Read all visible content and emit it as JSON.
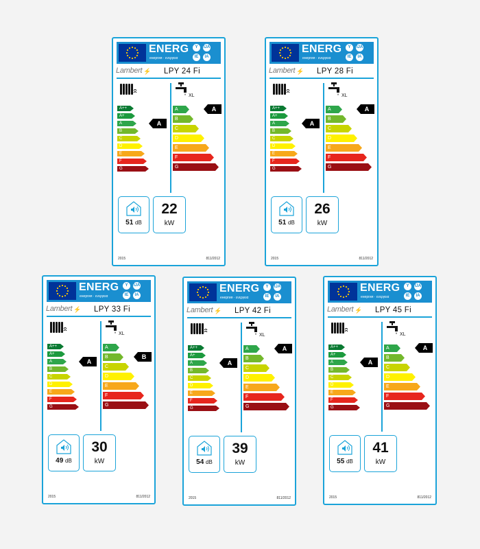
{
  "header": {
    "energ": "ENERG",
    "subtitle": "енергия · ενεργεια",
    "lang_codes": [
      "Y",
      "IJA",
      "IE",
      "IA"
    ],
    "flag_color": "#003399",
    "header_color": "#1a8fd0"
  },
  "scale_left": [
    "A++",
    "A+",
    "A",
    "B",
    "C",
    "D",
    "E",
    "F",
    "G"
  ],
  "scale_right": [
    "A",
    "B",
    "C",
    "D",
    "E",
    "F",
    "G"
  ],
  "scale_colors": {
    "A++": "#0a7a32",
    "A+": "#1c9a3e",
    "A": "#2ea64a",
    "B": "#73b82c",
    "C": "#c8d400",
    "D": "#fff100",
    "E": "#f7a81b",
    "F": "#e7261d",
    "G": "#9a0f14"
  },
  "tap_size": "XL",
  "labels": [
    {
      "brand": "Lambert",
      "model": "LPY 24 Fi",
      "heating_class": "A",
      "water_class": "A",
      "noise": "51",
      "noise_unit": "dB",
      "power": "22",
      "power_unit": "kW",
      "year": "2015",
      "regulation": "811/2012"
    },
    {
      "brand": "Lambert",
      "model": "LPY 28 Fi",
      "heating_class": "A",
      "water_class": "A",
      "noise": "51",
      "noise_unit": "dB",
      "power": "26",
      "power_unit": "kW",
      "year": "2015",
      "regulation": "811/2012"
    },
    {
      "brand": "Lambert",
      "model": "LPY 33 Fi",
      "heating_class": "A",
      "water_class": "B",
      "noise": "49",
      "noise_unit": "dB",
      "power": "30",
      "power_unit": "kW",
      "year": "2015",
      "regulation": "811/2012"
    },
    {
      "brand": "Lambert",
      "model": "LPY 42 Fi",
      "heating_class": "A",
      "water_class": "A",
      "noise": "54",
      "noise_unit": "dB",
      "power": "39",
      "power_unit": "kW",
      "year": "2015",
      "regulation": "811/2012"
    },
    {
      "brand": "Lambert",
      "model": "LPY 45 Fi",
      "heating_class": "A",
      "water_class": "A",
      "noise": "55",
      "noise_unit": "dB",
      "power": "41",
      "power_unit": "kW",
      "year": "2015",
      "regulation": "811/2012"
    }
  ]
}
